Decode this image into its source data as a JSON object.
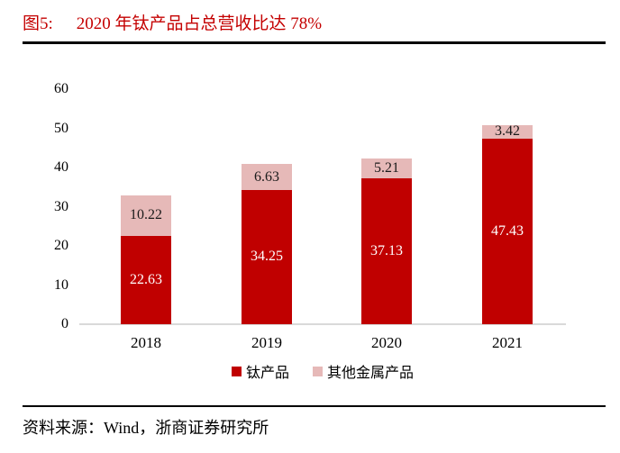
{
  "figure": {
    "label": "图5:",
    "title": "2020 年钛产品占总营收比达 78%"
  },
  "chart_data": {
    "type": "bar",
    "stacked": true,
    "title": "2020 年钛产品占总营收比达 78%",
    "categories": [
      "2018",
      "2019",
      "2020",
      "2021"
    ],
    "series": [
      {
        "name": "钛产品",
        "color": "#c00000",
        "label_color": "#ffffff",
        "values": [
          22.63,
          34.25,
          37.13,
          47.43
        ]
      },
      {
        "name": "其他金属产品",
        "color": "#e6b9b8",
        "label_color": "#1a1a1a",
        "values": [
          10.22,
          6.63,
          5.21,
          3.42
        ]
      }
    ],
    "y_ticks": [
      0,
      10,
      20,
      30,
      40,
      50,
      60
    ],
    "ylim": [
      0,
      60
    ],
    "xlabel": "",
    "ylabel": "",
    "grid": false,
    "legend_position": "bottom",
    "value_labels_shown": true
  },
  "source": {
    "label": "资料来源：Wind，浙商证券研究所"
  },
  "colors": {
    "title_red": "#c40000",
    "bar_red": "#c00000",
    "bar_pink": "#e6b9b8",
    "axis_line": "#d9d9d9",
    "divider": "#000000"
  }
}
